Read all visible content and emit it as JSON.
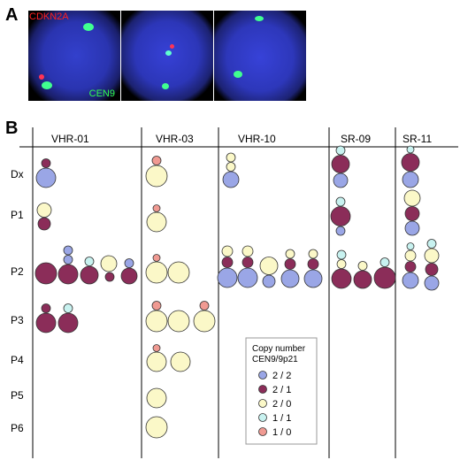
{
  "panel_a": {
    "letter": "A",
    "label_red": "CDKN2A",
    "label_green": "CEN9"
  },
  "panel_b": {
    "letter": "B",
    "columns": [
      "VHR-01",
      "VHR-03",
      "VHR-10",
      "SR-09",
      "SR-11"
    ],
    "rows": [
      "Dx",
      "P1",
      "P2",
      "P3",
      "P4",
      "P5",
      "P6"
    ]
  },
  "legend": {
    "title_line1": "Copy number",
    "title_line2": "CEN9/9p21",
    "items": [
      {
        "label": "2 / 2",
        "color": "#9aa6e6"
      },
      {
        "label": "2 / 1",
        "color": "#8b2d59"
      },
      {
        "label": "2 / 0",
        "color": "#fbf8c8"
      },
      {
        "label": "1 / 1",
        "color": "#c8f2f0"
      },
      {
        "label": "1 / 0",
        "color": "#f09a92"
      }
    ]
  }
}
